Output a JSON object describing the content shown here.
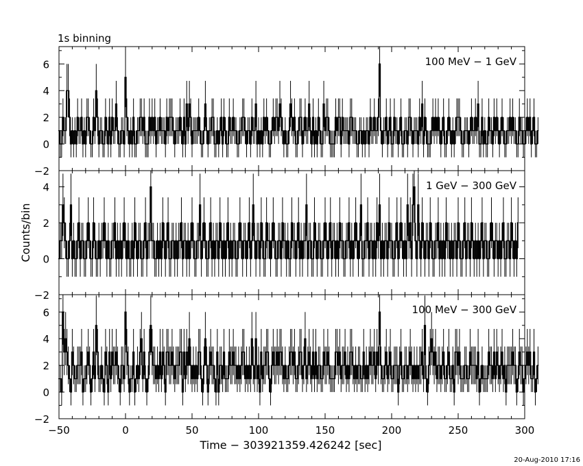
{
  "header": {
    "binning": "1s binning"
  },
  "footer": {
    "timestamp": "20-Aug-2010 17:16"
  },
  "chart_data": [
    {
      "type": "line",
      "panel_label": "100 MeV − 1 GeV",
      "ylabel": "",
      "xlim": [
        -50,
        300
      ],
      "ylim": [
        -2,
        7.3
      ],
      "yticks": [
        -2,
        0,
        2,
        4,
        6
      ],
      "x_start": -50.5,
      "bin_width": 1,
      "values": [
        1,
        0,
        0,
        2,
        1,
        1,
        4,
        4,
        2,
        0,
        1,
        0,
        1,
        0,
        2,
        1,
        1,
        2,
        0,
        1,
        0,
        2,
        2,
        1,
        0,
        0,
        2,
        1,
        4,
        2,
        0,
        1,
        1,
        0,
        0,
        2,
        1,
        0,
        2,
        0,
        2,
        1,
        1,
        3,
        1,
        0,
        0,
        1,
        1,
        0,
        5,
        2,
        1,
        0,
        1,
        0,
        2,
        0,
        0,
        1,
        1,
        2,
        2,
        1,
        2,
        0,
        0,
        0,
        2,
        1,
        2,
        1,
        2,
        0,
        1,
        1,
        2,
        1,
        1,
        1,
        0,
        2,
        1,
        2,
        2,
        2,
        1,
        0,
        1,
        1,
        1,
        2,
        1,
        0,
        2,
        0,
        3,
        1,
        3,
        2,
        0,
        1,
        1,
        1,
        1,
        2,
        1,
        0,
        0,
        1,
        3,
        1,
        0,
        1,
        1,
        2,
        2,
        0,
        0,
        1,
        0,
        1,
        2,
        0,
        2,
        1,
        0,
        0,
        2,
        1,
        1,
        2,
        1,
        1,
        0,
        0,
        1,
        1,
        2,
        2,
        1,
        0,
        1,
        1,
        0,
        2,
        1,
        1,
        3,
        0,
        1,
        0,
        1,
        0,
        2,
        1,
        2,
        1,
        0,
        0,
        1,
        2,
        1,
        2,
        2,
        1,
        3,
        2,
        1,
        0,
        1,
        0,
        0,
        1,
        3,
        2,
        1,
        2,
        0,
        0,
        1,
        2,
        2,
        0,
        1,
        2,
        1,
        1,
        3,
        1,
        0,
        2,
        0,
        1,
        0,
        2,
        1,
        0,
        0,
        3,
        1,
        2,
        2,
        1,
        0,
        0,
        0,
        0,
        2,
        1,
        2,
        2,
        0,
        2,
        1,
        1,
        1,
        1,
        0,
        2,
        2,
        1,
        1,
        1,
        0,
        0,
        1,
        1,
        0,
        1,
        0,
        1,
        1,
        0,
        2,
        1,
        1,
        2,
        1,
        1,
        2,
        6,
        1,
        0,
        1,
        1,
        2,
        0,
        1,
        2,
        0,
        0,
        2,
        1,
        1,
        0,
        1,
        2,
        0,
        0,
        1,
        1,
        0,
        2,
        2,
        1,
        0,
        1,
        1,
        1,
        0,
        2,
        1,
        3,
        0,
        2,
        1,
        0,
        0,
        0,
        1,
        2,
        1,
        2,
        1,
        2,
        1,
        0,
        1,
        2,
        0,
        0,
        1,
        2,
        1,
        0,
        1,
        0,
        1,
        2,
        2,
        2,
        1,
        0,
        0,
        1,
        1,
        1,
        0,
        1,
        2,
        1,
        1,
        2,
        1,
        3,
        0,
        0,
        2,
        0,
        1,
        0,
        0,
        2,
        1,
        1,
        0,
        2,
        1,
        2,
        1,
        0,
        1,
        2,
        1,
        0,
        0,
        1,
        1,
        2,
        1,
        2,
        1,
        1,
        0,
        0,
        2,
        1,
        1,
        0,
        0,
        1,
        2,
        1,
        2,
        0,
        1,
        2,
        0,
        0,
        1
      ]
    },
    {
      "type": "line",
      "panel_label": "1 GeV − 300 GeV",
      "ylabel": "Counts/bin",
      "xlim": [
        -50,
        300
      ],
      "ylim": [
        -2,
        4.9
      ],
      "yticks": [
        -2,
        0,
        2,
        4
      ],
      "x_start": -50.5,
      "bin_width": 1,
      "values": [
        0,
        1,
        1,
        3,
        2,
        1,
        0,
        0,
        1,
        3,
        0,
        1,
        0,
        0,
        1,
        2,
        0,
        1,
        1,
        0,
        0,
        1,
        2,
        1,
        0,
        0,
        2,
        1,
        0,
        0,
        1,
        0,
        1,
        1,
        2,
        1,
        0,
        1,
        0,
        0,
        1,
        1,
        2,
        0,
        1,
        0,
        1,
        0,
        1,
        2,
        1,
        0,
        1,
        0,
        0,
        1,
        0,
        2,
        1,
        0,
        1,
        1,
        0,
        0,
        1,
        2,
        0,
        1,
        1,
        4,
        1,
        1,
        0,
        0,
        1,
        0,
        1,
        0,
        2,
        1,
        0,
        1,
        2,
        0,
        0,
        1,
        1,
        0,
        1,
        0,
        1,
        1,
        2,
        0,
        1,
        1,
        0,
        1,
        0,
        1,
        2,
        1,
        0,
        0,
        1,
        1,
        3,
        0,
        1,
        2,
        1,
        0,
        0,
        1,
        2,
        0,
        1,
        0,
        1,
        1,
        0,
        2,
        1,
        0,
        1,
        0,
        1,
        2,
        0,
        1,
        0,
        1,
        1,
        0,
        0,
        1,
        2,
        1,
        0,
        1,
        1,
        0,
        1,
        2,
        0,
        1,
        3,
        1,
        0,
        1,
        1,
        0,
        2,
        1,
        0,
        0,
        2,
        1,
        1,
        0,
        1,
        2,
        1,
        0,
        0,
        1,
        1,
        0,
        2,
        1,
        1,
        0,
        1,
        0,
        0,
        2,
        1,
        1,
        0,
        1,
        2,
        0,
        1,
        0,
        1,
        1,
        3,
        0,
        1,
        1,
        0,
        0,
        2,
        1,
        0,
        1,
        1,
        0,
        0,
        1,
        2,
        1,
        0,
        1,
        2,
        0,
        1,
        1,
        0,
        1,
        0,
        2,
        1,
        1,
        0,
        0,
        1,
        1,
        2,
        0,
        1,
        0,
        1,
        2,
        1,
        0,
        1,
        3,
        0,
        0,
        1,
        1,
        2,
        0,
        1,
        1,
        0,
        1,
        0,
        2,
        1,
        3,
        0,
        1,
        0,
        1,
        1,
        0,
        2,
        1,
        1,
        0,
        0,
        1,
        2,
        0,
        1,
        2,
        1,
        0,
        1,
        0,
        3,
        1,
        2,
        0,
        3,
        4,
        1,
        0,
        3,
        1,
        0,
        2,
        1,
        0,
        1,
        1,
        0,
        2,
        1,
        0,
        0,
        1,
        1,
        2,
        0,
        1,
        0,
        1,
        0,
        2,
        1,
        1,
        0,
        1,
        0,
        1,
        1,
        0,
        2,
        1,
        0,
        0,
        1,
        2,
        0,
        1,
        1,
        0,
        2,
        1,
        0,
        1,
        0,
        1,
        0,
        1,
        2,
        0,
        1,
        1,
        0,
        0,
        1,
        2,
        1,
        0,
        1,
        1,
        0,
        1,
        0,
        1,
        2,
        0,
        0,
        1,
        1,
        0,
        2,
        1,
        0,
        1,
        0,
        2
      ]
    },
    {
      "type": "line",
      "panel_label": "100 MeV − 300 GeV",
      "ylabel": "",
      "xlim": [
        -50,
        300
      ],
      "ylim": [
        -2,
        7.3
      ],
      "yticks": [
        -2,
        0,
        2,
        4,
        6
      ],
      "x_start": -50.5,
      "bin_width": 1,
      "values": [
        1,
        1,
        0,
        6,
        3,
        4,
        3,
        2,
        1,
        0,
        3,
        2,
        1,
        1,
        2,
        2,
        2,
        3,
        0,
        1,
        1,
        2,
        3,
        2,
        0,
        1,
        3,
        1,
        5,
        3,
        1,
        1,
        2,
        1,
        0,
        3,
        2,
        0,
        3,
        1,
        3,
        2,
        2,
        3,
        2,
        1,
        0,
        2,
        2,
        1,
        6,
        3,
        2,
        0,
        1,
        1,
        3,
        0,
        1,
        2,
        1,
        3,
        4,
        1,
        3,
        1,
        0,
        1,
        3,
        5,
        3,
        2,
        2,
        1,
        2,
        1,
        3,
        1,
        3,
        2,
        0,
        3,
        3,
        2,
        2,
        3,
        2,
        1,
        2,
        2,
        2,
        3,
        3,
        0,
        3,
        1,
        3,
        2,
        4,
        2,
        1,
        2,
        1,
        2,
        1,
        3,
        3,
        1,
        0,
        2,
        4,
        2,
        0,
        2,
        3,
        2,
        2,
        1,
        0,
        3,
        0,
        2,
        2,
        1,
        3,
        1,
        1,
        1,
        3,
        2,
        2,
        3,
        2,
        2,
        1,
        2,
        1,
        2,
        3,
        3,
        1,
        2,
        1,
        2,
        1,
        4,
        2,
        1,
        4,
        1,
        2,
        0,
        3,
        1,
        2,
        2,
        3,
        3,
        1,
        0,
        2,
        3,
        2,
        2,
        3,
        2,
        3,
        3,
        2,
        1,
        2,
        1,
        1,
        2,
        3,
        3,
        2,
        3,
        1,
        1,
        2,
        3,
        3,
        1,
        2,
        4,
        1,
        2,
        3,
        2,
        1,
        3,
        1,
        3,
        1,
        2,
        2,
        1,
        1,
        3,
        2,
        2,
        3,
        2,
        1,
        1,
        1,
        1,
        3,
        3,
        2,
        3,
        1,
        2,
        2,
        3,
        1,
        2,
        1,
        3,
        3,
        2,
        1,
        2,
        1,
        2,
        2,
        1,
        1,
        3,
        1,
        2,
        1,
        2,
        3,
        2,
        2,
        3,
        1,
        3,
        2,
        6,
        2,
        1,
        1,
        2,
        3,
        1,
        2,
        3,
        1,
        1,
        2,
        2,
        2,
        0,
        2,
        3,
        1,
        1,
        2,
        2,
        1,
        2,
        3,
        2,
        1,
        2,
        1,
        2,
        1,
        2,
        2,
        3,
        1,
        5,
        1,
        0,
        2,
        3,
        4,
        3,
        2,
        3,
        1,
        2,
        2,
        1,
        2,
        3,
        1,
        1,
        2,
        3,
        1,
        1,
        2,
        0,
        3,
        3,
        2,
        3,
        1,
        1,
        1,
        2,
        2,
        1,
        1,
        3,
        2,
        2,
        2,
        2,
        1,
        3,
        0,
        1,
        2,
        1,
        1,
        1,
        1,
        3,
        2,
        2,
        1,
        3,
        1,
        3,
        2,
        1,
        2,
        3,
        1,
        2,
        0,
        2,
        2,
        2,
        2,
        3,
        2,
        2,
        0,
        1,
        3,
        2,
        2,
        0,
        1,
        2,
        3,
        2,
        3,
        1,
        1,
        3,
        0,
        1,
        2
      ]
    }
  ],
  "x_axis": {
    "label": "Time − 303921359.426242 [sec]",
    "ticks": [
      -50,
      0,
      50,
      100,
      150,
      200,
      250,
      300
    ],
    "minor_step": 10
  }
}
